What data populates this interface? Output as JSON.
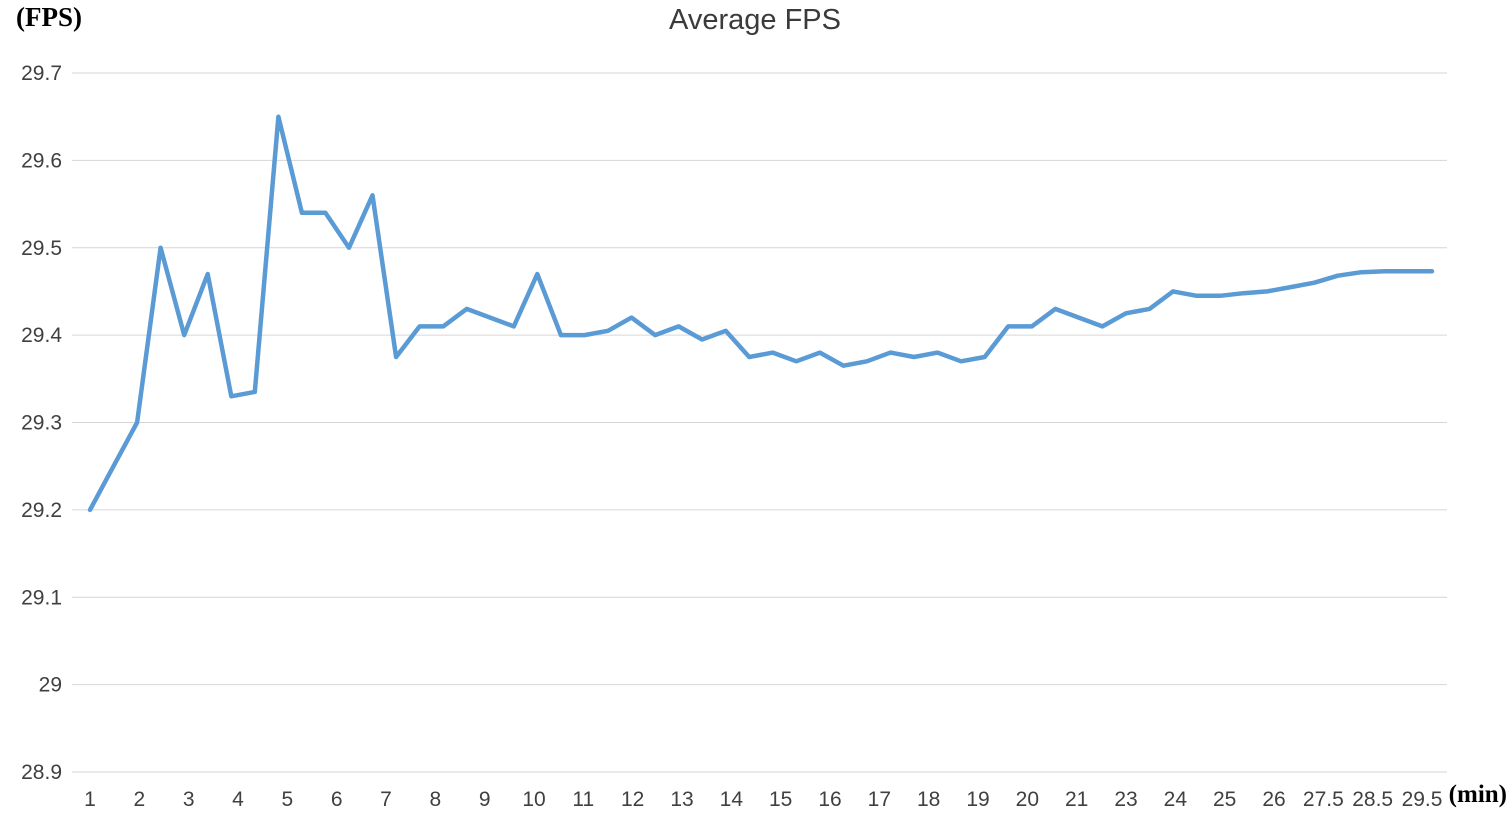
{
  "chart_data": {
    "type": "line",
    "title": "Average FPS",
    "y_axis_label": "(FPS)",
    "x_axis_label": "(min)",
    "ylim": [
      28.9,
      29.7
    ],
    "y_tick_values": [
      29.7,
      29.6,
      29.5,
      29.4,
      29.3,
      29.2,
      29.1,
      29.0,
      28.9
    ],
    "y_tick_labels": [
      "29.7",
      "29.6",
      "29.5",
      "29.4",
      "29.3",
      "29.2",
      "29.1",
      "29",
      "28.9"
    ],
    "x_tick_labels": [
      "1",
      "2",
      "3",
      "4",
      "5",
      "6",
      "7",
      "8",
      "9",
      "10",
      "11",
      "12",
      "13",
      "14",
      "15",
      "16",
      "17",
      "18",
      "19",
      "20",
      "21",
      "23",
      "24",
      "25",
      "26",
      "27.5",
      "28.5",
      "29.5"
    ],
    "grid": true,
    "legend": "none",
    "line_color": "#5b9bd5",
    "grid_color": "#d6d6d6",
    "tick_color": "#404040",
    "series": [
      {
        "name": "Average FPS",
        "x": [
          1,
          1.5,
          2,
          2.5,
          3,
          3.5,
          4,
          4.5,
          5,
          5.5,
          6,
          6.5,
          7,
          7.5,
          8,
          8.5,
          9,
          9.5,
          10,
          10.5,
          11,
          11.5,
          12,
          12.5,
          13,
          13.5,
          14,
          14.5,
          15,
          15.5,
          16,
          16.5,
          17,
          17.5,
          18,
          18.5,
          19,
          19.5,
          20,
          20.5,
          21,
          21.5,
          22,
          22.5,
          23,
          23.5,
          24,
          24.5,
          25,
          25.5,
          26,
          26.5,
          27,
          27.5,
          28,
          28.5,
          29,
          29.5
        ],
        "y": [
          29.2,
          29.25,
          29.3,
          29.5,
          29.4,
          29.47,
          29.33,
          29.335,
          29.65,
          29.54,
          29.54,
          29.5,
          29.56,
          29.375,
          29.41,
          29.41,
          29.43,
          29.42,
          29.41,
          29.47,
          29.4,
          29.4,
          29.405,
          29.42,
          29.4,
          29.41,
          29.395,
          29.405,
          29.375,
          29.38,
          29.37,
          29.38,
          29.365,
          29.37,
          29.38,
          29.375,
          29.38,
          29.37,
          29.375,
          29.41,
          29.41,
          29.43,
          29.42,
          29.41,
          29.425,
          29.43,
          29.45,
          29.445,
          29.445,
          29.448,
          29.45,
          29.455,
          29.46,
          29.468,
          29.472,
          29.473,
          29.473,
          29.473
        ]
      }
    ]
  }
}
